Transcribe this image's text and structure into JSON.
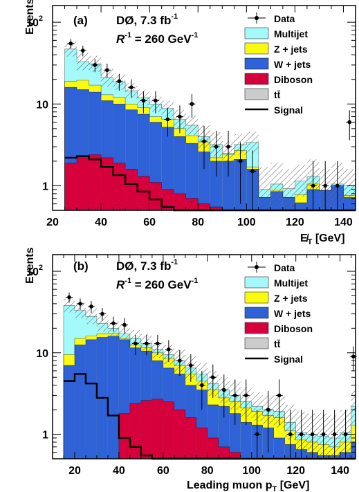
{
  "colors": {
    "multijet": "#a4fafa",
    "zjets": "#fafa0f",
    "wjets": "#2e62d6",
    "diboson": "#d6003c",
    "ttbar": "#cccccc",
    "signal": "#000000",
    "data": "#000000"
  },
  "legend": {
    "data": "Data",
    "multijet": "Multijet",
    "zjets": "Z + jets",
    "wjets": "W + jets",
    "diboson": "Diboson",
    "ttbar": "tt̄",
    "signal": "Signal"
  },
  "chart_data": [
    {
      "type": "histogram",
      "panel_label": "(a)",
      "experiment": "DØ, 7.3 fb",
      "experiment_sup": "-1",
      "param": "R",
      "param_sup": "-1",
      "param_value": " = 260 GeV",
      "param_value_sup": "-1",
      "xlabel": "E̸",
      "xlabel_sub": "T",
      "xlabel_unit": " [GeV]",
      "ylabel": "Events",
      "x_ticks": [
        20,
        40,
        60,
        80,
        100,
        120,
        140
      ],
      "y_ticks": [
        {
          "value": 1,
          "label": "1"
        },
        {
          "value": 10,
          "label": "10"
        },
        {
          "value": 100,
          "label": "10",
          "sup": "2"
        }
      ],
      "xlim": [
        20,
        145
      ],
      "ylim_log": [
        0.5,
        160
      ],
      "bin_edges": [
        25,
        30,
        35,
        40,
        45,
        50,
        55,
        60,
        65,
        70,
        75,
        80,
        85,
        90,
        95,
        100,
        105,
        110,
        115,
        120,
        125,
        130,
        135,
        140,
        145
      ],
      "stack": {
        "diboson": [
          1.9,
          2.2,
          2.4,
          2.2,
          1.9,
          1.6,
          1.3,
          1.1,
          0.9,
          0.8,
          0.7,
          0.6,
          0.55,
          0.5,
          0.45,
          0.4,
          0.38,
          0.35,
          0.32,
          0.3,
          0.28,
          0.26,
          0.24,
          0.22
        ],
        "wjets": [
          16,
          15,
          14,
          11,
          10,
          8.5,
          7.5,
          6,
          5.2,
          4,
          3.3,
          2.6,
          2.0,
          2.0,
          2.1,
          1.6,
          0.72,
          0.85,
          0.72,
          0.62,
          0.9,
          0.88,
          1.0,
          0.72
        ],
        "zjets": [
          19,
          19.5,
          17,
          13,
          12,
          10,
          9,
          7,
          6.5,
          5,
          4.1,
          3.4,
          2.2,
          2.4,
          2.7,
          1.7,
          0.72,
          0.88,
          0.72,
          0.78,
          1.05,
          0.88,
          1.0,
          0.76
        ],
        "multijet": [
          47,
          33,
          31,
          21,
          18.5,
          14.5,
          12,
          10,
          8.8,
          6.5,
          5.5,
          4,
          3.2,
          2.5,
          3.2,
          3.4,
          0.9,
          1.05,
          0.92,
          1.15,
          1.3,
          0.88,
          1.05,
          1.0
        ],
        "ttbar": [
          0.05,
          0.05,
          0.05,
          0.05,
          0.05,
          0.05,
          0.05,
          0.05,
          0.05,
          0.05,
          0.05,
          0.05,
          0.05,
          0.05,
          0.05,
          0.05,
          0.05,
          0.05,
          0.05,
          0.05,
          0.05,
          0.05,
          0.05,
          0.05
        ]
      },
      "unc_band_top": [
        58,
        42,
        39,
        27,
        23,
        18,
        15,
        12.5,
        11,
        8.5,
        7.2,
        5.5,
        4.5,
        3.5,
        4.3,
        4.6,
        1.7,
        1.9,
        1.6,
        1.8,
        2.1,
        1.6,
        1.9,
        1.6
      ],
      "signal": [
        2.2,
        2.3,
        2.1,
        1.7,
        1.35,
        1.05,
        0.85,
        0.68,
        0.55,
        0.45,
        0.4,
        0.35,
        0.3,
        0.28,
        0.26,
        0.24,
        0.22,
        0.2,
        0.19,
        0.18,
        0.17,
        0.16,
        0.15,
        0.14
      ],
      "data": {
        "x": [
          27.5,
          32.5,
          37.5,
          42.5,
          47.5,
          52.5,
          57.5,
          62.5,
          67.5,
          72.5,
          77.5,
          82.5,
          87.5,
          92.5,
          97.5,
          102.5,
          127.5,
          132.5,
          137.5,
          142.5
        ],
        "y": [
          55,
          45,
          30,
          26,
          19,
          16,
          11,
          11,
          6.5,
          7,
          10,
          3.5,
          3,
          3,
          2,
          1.5,
          1,
          1,
          1,
          6
        ],
        "err": [
          7.4,
          6.7,
          5.5,
          5.1,
          4.4,
          4,
          3.3,
          3.3,
          2.5,
          2.6,
          3.2,
          1.9,
          1.7,
          1.7,
          1.4,
          1.2,
          1,
          1,
          1,
          2.4
        ]
      }
    },
    {
      "type": "histogram",
      "panel_label": "(b)",
      "experiment": "DØ, 7.3 fb",
      "experiment_sup": "-1",
      "param": "R",
      "param_sup": "-1",
      "param_value": " = 260 GeV",
      "param_value_sup": "-1",
      "xlabel": "Leading muon p",
      "xlabel_sub": "T",
      "xlabel_unit": " [GeV]",
      "ylabel": "Events",
      "x_ticks": [
        20,
        40,
        60,
        80,
        100,
        120,
        140
      ],
      "y_ticks": [
        {
          "value": 1,
          "label": "1"
        },
        {
          "value": 10,
          "label": "10"
        },
        {
          "value": 100,
          "label": "10",
          "sup": "2"
        }
      ],
      "xlim": [
        10,
        147
      ],
      "ylim_log": [
        0.5,
        160
      ],
      "bin_edges": [
        15,
        20,
        25,
        30,
        35,
        40,
        45,
        50,
        55,
        60,
        65,
        70,
        75,
        80,
        85,
        90,
        95,
        100,
        105,
        110,
        115,
        120,
        125,
        130,
        135,
        140,
        145,
        147
      ],
      "stack": {
        "diboson": [
          0.2,
          0.2,
          0.2,
          0.2,
          0.45,
          1.8,
          2.4,
          2.6,
          2.7,
          2.5,
          2.0,
          1.6,
          1.2,
          0.9,
          0.7,
          0.6,
          0.5,
          0.45,
          0.4,
          0.35,
          0.3,
          0.28,
          0.26,
          0.24,
          0.22,
          0.2,
          0.2
        ],
        "wjets": [
          7,
          12.5,
          14.5,
          15.5,
          16,
          14.5,
          11.5,
          10.5,
          8,
          6.5,
          5.5,
          4,
          3.5,
          2.3,
          2.2,
          1.8,
          1.4,
          1.3,
          1.2,
          0.9,
          0.75,
          0.65,
          0.6,
          0.55,
          0.55,
          0.6,
          0.8
        ],
        "zjets": [
          9.5,
          15,
          16,
          17,
          17,
          15,
          12.5,
          11.5,
          10,
          8.5,
          7,
          5.5,
          4.5,
          3.5,
          2.8,
          2.5,
          2.1,
          1.9,
          1.7,
          1.6,
          1.1,
          0.85,
          0.8,
          0.75,
          0.7,
          0.8,
          1.3
        ],
        "multijet": [
          38,
          33,
          28,
          23,
          20,
          17,
          15,
          13,
          11,
          9.5,
          8,
          6.5,
          5.5,
          4.2,
          3.5,
          3,
          2.5,
          2.2,
          2,
          1.9,
          1.4,
          1.05,
          1.0,
          0.95,
          0.9,
          1.05,
          2.2
        ],
        "ttbar": [
          0.35,
          0.35,
          0.4,
          0.4,
          0.45,
          0.48,
          0.45,
          0.4,
          0.38,
          0.35,
          0.3,
          0.28,
          0.25,
          0.22,
          0.2,
          0.18,
          0.15,
          0.12,
          0.1,
          0.08,
          0.06,
          0.05,
          0.05,
          0.05,
          0.05,
          0.05,
          0.05
        ]
      },
      "unc_band_top": [
        46,
        41,
        35,
        29,
        25,
        22,
        19,
        17,
        14,
        12.5,
        11,
        9,
        7.5,
        6,
        5,
        4.5,
        3.8,
        3.3,
        3,
        3,
        2.3,
        1.9,
        1.8,
        1.8,
        1.7,
        2.0,
        3.6
      ],
      "signal": [
        4.5,
        5.5,
        4.2,
        2.8,
        1.7,
        0.9,
        0.7,
        0.55,
        0.45,
        0.4,
        0.35,
        0.3,
        0.28,
        0.25,
        0.22,
        0.2,
        0.18,
        0.16,
        0.15,
        0.14,
        0.13,
        0.12,
        0.11,
        0.1,
        0.1,
        0.1,
        0.1
      ],
      "data": {
        "x": [
          17.5,
          22.5,
          27.5,
          32.5,
          37.5,
          42.5,
          47.5,
          52.5,
          57.5,
          62.5,
          67.5,
          72.5,
          77.5,
          82.5,
          87.5,
          92.5,
          97.5,
          102.5,
          107.5,
          112.5,
          117.5,
          122.5,
          127.5,
          132.5,
          137.5,
          142.5,
          146
        ],
        "y": [
          48,
          40,
          37,
          30,
          23,
          22,
          13,
          13,
          13,
          11,
          8,
          7,
          4,
          5,
          3.5,
          3,
          3,
          1,
          2,
          3,
          1,
          1,
          1,
          1,
          1,
          1,
          9
        ],
        "err": [
          6.9,
          6.3,
          6.1,
          5.5,
          4.8,
          4.7,
          3.6,
          3.6,
          3.6,
          3.3,
          2.8,
          2.6,
          2,
          2.2,
          1.9,
          1.7,
          1.7,
          1,
          1.4,
          1.7,
          1,
          1,
          1,
          1,
          1,
          1,
          3
        ]
      }
    }
  ]
}
